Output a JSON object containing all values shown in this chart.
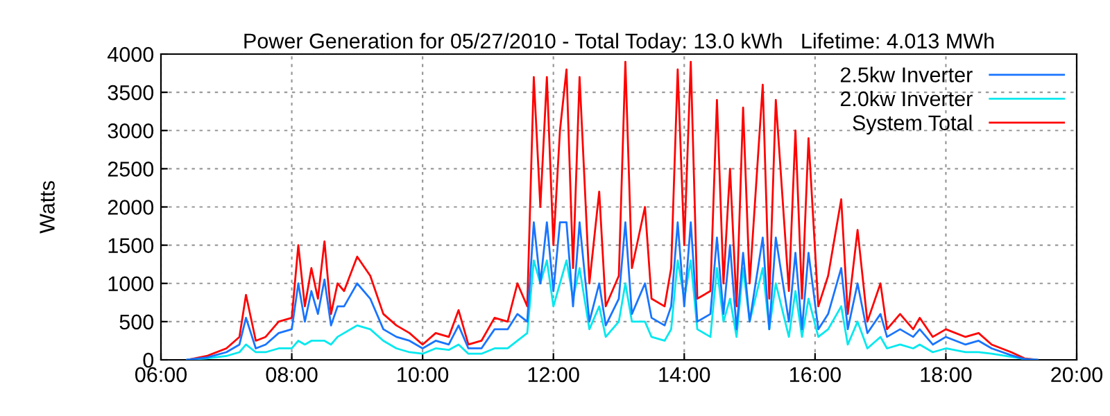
{
  "chart_data": {
    "type": "line",
    "title": "Power Generation for 05/27/2010 - Total Today: 13.0 kWh   Lifetime: 4.013 MWh",
    "ylabel": "Watts",
    "x": [
      6.4,
      6.7,
      7.0,
      7.2,
      7.3,
      7.45,
      7.6,
      7.8,
      8.0,
      8.1,
      8.2,
      8.3,
      8.4,
      8.5,
      8.6,
      8.7,
      8.8,
      9.0,
      9.2,
      9.4,
      9.6,
      9.8,
      10.0,
      10.2,
      10.4,
      10.55,
      10.7,
      10.9,
      11.1,
      11.3,
      11.45,
      11.6,
      11.7,
      11.8,
      11.9,
      12.0,
      12.1,
      12.2,
      12.3,
      12.4,
      12.55,
      12.7,
      12.8,
      13.0,
      13.1,
      13.2,
      13.4,
      13.5,
      13.7,
      13.8,
      13.9,
      14.0,
      14.1,
      14.2,
      14.4,
      14.5,
      14.6,
      14.7,
      14.8,
      14.9,
      15.0,
      15.2,
      15.3,
      15.4,
      15.6,
      15.7,
      15.8,
      15.9,
      16.05,
      16.2,
      16.4,
      16.5,
      16.65,
      16.8,
      17.0,
      17.1,
      17.3,
      17.5,
      17.6,
      17.8,
      18.0,
      18.3,
      18.5,
      18.7,
      19.0,
      19.2,
      19.4
    ],
    "series": [
      {
        "name": "2.5kw Inverter",
        "color": "#1874ff",
        "values": [
          0,
          30,
          100,
          200,
          550,
          150,
          200,
          350,
          400,
          1000,
          500,
          900,
          600,
          1050,
          450,
          700,
          700,
          1000,
          800,
          400,
          300,
          250,
          150,
          250,
          200,
          450,
          150,
          150,
          400,
          400,
          600,
          500,
          1800,
          1000,
          1800,
          900,
          1800,
          1800,
          700,
          1800,
          500,
          1000,
          450,
          800,
          1800,
          600,
          1000,
          550,
          450,
          700,
          1800,
          700,
          1800,
          500,
          600,
          1600,
          600,
          1500,
          400,
          1400,
          500,
          1600,
          400,
          1600,
          500,
          1400,
          400,
          1400,
          400,
          600,
          1200,
          400,
          1000,
          350,
          600,
          300,
          400,
          300,
          400,
          200,
          300,
          200,
          250,
          150,
          60,
          10,
          0
        ]
      },
      {
        "name": "2.0kw Inverter",
        "color": "#00e8ee",
        "values": [
          0,
          20,
          50,
          100,
          200,
          100,
          100,
          150,
          150,
          250,
          200,
          250,
          250,
          250,
          200,
          300,
          350,
          450,
          400,
          250,
          150,
          100,
          80,
          150,
          130,
          200,
          80,
          80,
          150,
          150,
          250,
          350,
          1300,
          1000,
          1300,
          700,
          1000,
          1300,
          800,
          1200,
          400,
          700,
          300,
          500,
          1000,
          500,
          500,
          300,
          250,
          400,
          1300,
          800,
          1300,
          400,
          300,
          1200,
          500,
          800,
          300,
          1200,
          500,
          1200,
          400,
          1000,
          300,
          900,
          300,
          800,
          300,
          400,
          700,
          200,
          500,
          150,
          300,
          150,
          200,
          150,
          200,
          100,
          150,
          100,
          100,
          80,
          40,
          10,
          0
        ]
      },
      {
        "name": "System Total",
        "color": "#ff0000",
        "values": [
          0,
          50,
          150,
          300,
          850,
          250,
          300,
          500,
          550,
          1500,
          700,
          1200,
          800,
          1550,
          600,
          1000,
          900,
          1350,
          1100,
          600,
          450,
          350,
          200,
          350,
          300,
          650,
          200,
          250,
          550,
          500,
          1000,
          700,
          3700,
          2000,
          3700,
          1500,
          3000,
          3800,
          1200,
          3700,
          1000,
          2200,
          700,
          1100,
          3900,
          1200,
          2000,
          800,
          700,
          1200,
          3800,
          1500,
          3900,
          800,
          900,
          3400,
          1000,
          2500,
          700,
          3300,
          1000,
          3600,
          800,
          3400,
          900,
          3000,
          800,
          2900,
          700,
          1100,
          2100,
          600,
          1700,
          500,
          1000,
          400,
          600,
          400,
          550,
          300,
          400,
          300,
          350,
          200,
          100,
          20,
          0
        ]
      }
    ],
    "xlim": [
      6,
      20
    ],
    "xticks": [
      {
        "value": 6,
        "label": "06:00"
      },
      {
        "value": 8,
        "label": "08:00"
      },
      {
        "value": 10,
        "label": "10:00"
      },
      {
        "value": 12,
        "label": "12:00"
      },
      {
        "value": 14,
        "label": "14:00"
      },
      {
        "value": 16,
        "label": "16:00"
      },
      {
        "value": 18,
        "label": "18:00"
      },
      {
        "value": 20,
        "label": "20:00"
      }
    ],
    "ylim": [
      0,
      4000
    ],
    "yticks": [
      0,
      500,
      1000,
      1500,
      2000,
      2500,
      3000,
      3500,
      4000
    ],
    "grid": true,
    "legend": "top right",
    "marker": "none",
    "line_style": "solid"
  }
}
